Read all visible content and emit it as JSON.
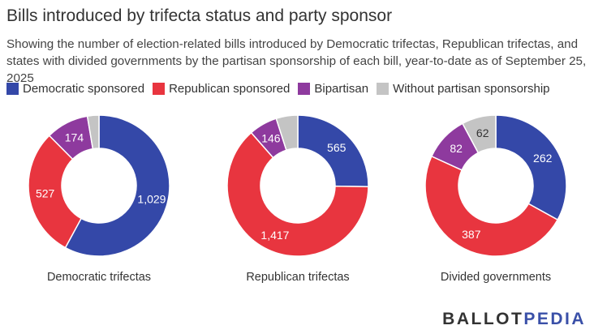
{
  "title": "Bills introduced by trifecta status and party sponsor",
  "subtitle": "Showing the number of election-related bills introduced by Democratic trifectas, Republican trifectas, and states with divided governments by the partisan sponsorship of each bill, year-to-date as of September 25, 2025",
  "legend": [
    {
      "label": "Democratic sponsored",
      "color": "#3448a8"
    },
    {
      "label": "Republican sponsored",
      "color": "#e8353f"
    },
    {
      "label": "Bipartisan",
      "color": "#8e3a9e"
    },
    {
      "label": "Without partisan sponsorship",
      "color": "#c4c4c4"
    }
  ],
  "brand": {
    "part1": "BALLOT",
    "part2": "PEDIA"
  },
  "chart_data": [
    {
      "type": "pie",
      "title": "Democratic trifectas",
      "categories": [
        "Democratic sponsored",
        "Republican sponsored",
        "Bipartisan",
        "Without partisan sponsorship"
      ],
      "values": [
        1029,
        527,
        174,
        47
      ],
      "labels": [
        "1,029",
        "527",
        "174",
        ""
      ]
    },
    {
      "type": "pie",
      "title": "Republican trifectas",
      "categories": [
        "Democratic sponsored",
        "Republican sponsored",
        "Bipartisan",
        "Without partisan sponsorship"
      ],
      "values": [
        565,
        1417,
        146,
        111
      ],
      "labels": [
        "565",
        "1,417",
        "146",
        ""
      ]
    },
    {
      "type": "pie",
      "title": "Divided governments",
      "categories": [
        "Democratic sponsored",
        "Republican sponsored",
        "Bipartisan",
        "Without partisan sponsorship"
      ],
      "values": [
        262,
        387,
        82,
        62
      ],
      "labels": [
        "262",
        "387",
        "82",
        "62"
      ]
    }
  ]
}
